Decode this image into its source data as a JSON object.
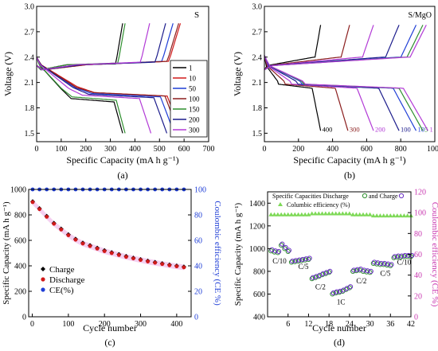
{
  "chart_data": [
    {
      "id": "a",
      "type": "line",
      "caption": "(a)",
      "title": "S",
      "xlabel": "Specific Capacity (mA h g⁻¹)",
      "ylabel": "Voltage (V)",
      "xlim": [
        0,
        700
      ],
      "ylim": [
        1.4,
        3.0
      ],
      "xticks": [
        0,
        100,
        200,
        300,
        400,
        500,
        600,
        700
      ],
      "yticks": [
        1.5,
        1.8,
        2.1,
        2.4,
        2.7,
        3.0
      ],
      "legend_position": "right",
      "legend_title": "",
      "series": [
        {
          "name": "1",
          "color": "#000000",
          "discharge_capacity": 350,
          "charge_capacity": 350,
          "upper_plateau": 2.03,
          "lower_plateau": 1.91,
          "charge_plateau": 2.32
        },
        {
          "name": "10",
          "color": "#d11a1a",
          "discharge_capacity": 590,
          "charge_capacity": 585,
          "upper_plateau": 2.05,
          "lower_plateau": 1.98,
          "charge_plateau": 2.35
        },
        {
          "name": "50",
          "color": "#1f3ed6",
          "discharge_capacity": 560,
          "charge_capacity": 555,
          "upper_plateau": 2.04,
          "lower_plateau": 1.97,
          "charge_plateau": 2.35
        },
        {
          "name": "100",
          "color": "#8b1e1e",
          "discharge_capacity": 580,
          "charge_capacity": 578,
          "upper_plateau": 2.04,
          "lower_plateau": 1.98,
          "charge_plateau": 2.35
        },
        {
          "name": "150",
          "color": "#2f8f2f",
          "discharge_capacity": 360,
          "charge_capacity": 360,
          "upper_plateau": 2.03,
          "lower_plateau": 1.93,
          "charge_plateau": 2.33
        },
        {
          "name": "200",
          "color": "#1c1c8c",
          "discharge_capacity": 530,
          "charge_capacity": 525,
          "upper_plateau": 2.04,
          "lower_plateau": 1.96,
          "charge_plateau": 2.34
        },
        {
          "name": "300",
          "color": "#b23ad6",
          "discharge_capacity": 465,
          "charge_capacity": 460,
          "upper_plateau": 2.03,
          "lower_plateau": 1.95,
          "charge_plateau": 2.34
        }
      ]
    },
    {
      "id": "b",
      "type": "line",
      "caption": "(b)",
      "title": "S/MgO",
      "xlabel": "Specific Capacity (mA h g⁻¹)",
      "ylabel": "Voltage (V)",
      "xlim": [
        0,
        1000
      ],
      "ylim": [
        1.4,
        3.0
      ],
      "xticks": [
        0,
        200,
        400,
        600,
        800,
        1000
      ],
      "yticks": [
        1.5,
        1.8,
        2.1,
        2.4,
        2.7,
        3.0
      ],
      "series": [
        {
          "name": "400",
          "color": "#000000",
          "discharge_capacity": 330,
          "charge_capacity": 330
        },
        {
          "name": "300",
          "color": "#8b1e1e",
          "discharge_capacity": 490,
          "charge_capacity": 500
        },
        {
          "name": "200",
          "color": "#b23ad6",
          "discharge_capacity": 640,
          "charge_capacity": 640
        },
        {
          "name": "100",
          "color": "#1c1c8c",
          "discharge_capacity": 790,
          "charge_capacity": 790
        },
        {
          "name": "10",
          "color": "#1f3ed6",
          "discharge_capacity": 890,
          "charge_capacity": 890
        },
        {
          "name": "5",
          "color": "#2f8f2f",
          "discharge_capacity": 930,
          "charge_capacity": 930
        },
        {
          "name": "1",
          "color": "#b23ad6",
          "discharge_capacity": 960,
          "charge_capacity": 950
        }
      ]
    },
    {
      "id": "c",
      "type": "scatter",
      "caption": "(c)",
      "xlabel": "Cycle number",
      "ylabel": "Specific Capacity (mA h g⁻¹)",
      "y2label": "Coulombic efficiency (CE %)",
      "xlim": [
        -10,
        440
      ],
      "ylim": [
        0,
        1000
      ],
      "y2lim": [
        0,
        100
      ],
      "xticks": [
        0,
        100,
        200,
        300,
        400
      ],
      "yticks": [
        0,
        200,
        400,
        600,
        800,
        1000
      ],
      "y2ticks": [
        0,
        20,
        40,
        60,
        80,
        100
      ],
      "legend_position": "bottom-left",
      "series": [
        {
          "name": "Charge",
          "color": "#000000",
          "marker": "diamond",
          "x": [
            1,
            20,
            40,
            60,
            80,
            100,
            120,
            140,
            160,
            180,
            200,
            220,
            240,
            260,
            280,
            300,
            320,
            340,
            360,
            380,
            400,
            420
          ],
          "y": [
            905,
            850,
            790,
            735,
            690,
            645,
            610,
            580,
            560,
            540,
            520,
            505,
            490,
            475,
            462,
            450,
            438,
            428,
            418,
            408,
            400,
            392
          ]
        },
        {
          "name": "Discharge",
          "color": "#d11a1a",
          "marker": "circle",
          "x": [
            1,
            20,
            40,
            60,
            80,
            100,
            120,
            140,
            160,
            180,
            200,
            220,
            240,
            260,
            280,
            300,
            320,
            340,
            360,
            380,
            400,
            420
          ],
          "y": [
            900,
            845,
            785,
            730,
            685,
            640,
            605,
            575,
            555,
            535,
            515,
            500,
            485,
            470,
            458,
            446,
            434,
            424,
            414,
            404,
            396,
            388
          ]
        },
        {
          "name": "CE(%)",
          "color": "#1f3ed6",
          "marker": "circle",
          "axis": "right",
          "x": [
            1,
            20,
            40,
            60,
            80,
            100,
            120,
            140,
            160,
            180,
            200,
            220,
            240,
            260,
            280,
            300,
            320,
            340,
            360,
            380,
            400,
            420
          ],
          "y": [
            100,
            100,
            100,
            100,
            100,
            100,
            100,
            100,
            100,
            100,
            100,
            100,
            100,
            100,
            100,
            100,
            100,
            100,
            100,
            100,
            100,
            100
          ]
        }
      ]
    },
    {
      "id": "d",
      "type": "scatter",
      "caption": "(d)",
      "xlabel": "Cycle number",
      "ylabel": "Specific Capacity (mA h g⁻¹)",
      "y2label": "Coulombic efficiency (CE %)",
      "xlim": [
        0,
        42
      ],
      "ylim": [
        400,
        1500
      ],
      "y2lim": [
        0,
        120
      ],
      "xticks": [
        6,
        12,
        18,
        24,
        30,
        36,
        42
      ],
      "yticks": [
        400,
        600,
        800,
        1000,
        1200,
        1400
      ],
      "y2ticks": [
        0,
        20,
        40,
        60,
        80,
        100,
        120
      ],
      "legend": {
        "capacities": "Specific Capacities Discharge",
        "charge": "and Charge",
        "ce": "Columbic efficiency (%)"
      },
      "rate_labels": [
        {
          "text": "C/10",
          "x": 3.5,
          "y": 870
        },
        {
          "text": "C/5",
          "x": 10.5,
          "y": 820
        },
        {
          "text": "C/2",
          "x": 15.5,
          "y": 640
        },
        {
          "text": "1C",
          "x": 21.5,
          "y": 510
        },
        {
          "text": "C/2",
          "x": 27.5,
          "y": 695
        },
        {
          "text": "C/5",
          "x": 34.5,
          "y": 760
        },
        {
          "text": "C/10",
          "x": 40,
          "y": 860
        }
      ],
      "series": [
        {
          "name": "Discharge",
          "color": "#2f8f2f",
          "marker": "circle",
          "x": [
            1,
            2,
            3,
            4,
            5,
            6,
            7,
            8,
            9,
            10,
            11,
            12,
            13,
            14,
            15,
            16,
            17,
            18,
            19,
            20,
            21,
            22,
            23,
            24,
            25,
            26,
            27,
            28,
            29,
            30,
            31,
            32,
            33,
            34,
            35,
            36,
            37,
            38,
            39,
            40,
            41,
            42
          ],
          "y": [
            980,
            970,
            965,
            1030,
            1000,
            975,
            880,
            885,
            890,
            895,
            900,
            905,
            735,
            745,
            755,
            770,
            780,
            790,
            600,
            610,
            615,
            625,
            640,
            655,
            800,
            805,
            810,
            800,
            795,
            790,
            870,
            865,
            860,
            860,
            855,
            850,
            920,
            925,
            925,
            930,
            930,
            930
          ]
        },
        {
          "name": "Charge",
          "color": "#6a2fc4",
          "marker": "circle",
          "x": [
            1,
            2,
            3,
            4,
            5,
            6,
            7,
            8,
            9,
            10,
            11,
            12,
            13,
            14,
            15,
            16,
            17,
            18,
            19,
            20,
            21,
            22,
            23,
            24,
            25,
            26,
            27,
            28,
            29,
            30,
            31,
            32,
            33,
            34,
            35,
            36,
            37,
            38,
            39,
            40,
            41,
            42
          ],
          "y": [
            990,
            980,
            975,
            1040,
            1010,
            985,
            890,
            895,
            900,
            905,
            910,
            915,
            745,
            755,
            765,
            780,
            790,
            800,
            610,
            620,
            625,
            635,
            650,
            665,
            810,
            815,
            820,
            810,
            805,
            800,
            880,
            875,
            870,
            870,
            865,
            860,
            930,
            935,
            935,
            940,
            940,
            940
          ]
        },
        {
          "name": "Columbic efficiency (%)",
          "color": "#7ed957",
          "marker": "triangle",
          "axis": "right",
          "x": [
            1,
            2,
            3,
            4,
            5,
            6,
            7,
            8,
            9,
            10,
            11,
            12,
            13,
            14,
            15,
            16,
            17,
            18,
            19,
            20,
            21,
            22,
            23,
            24,
            25,
            26,
            27,
            28,
            29,
            30,
            31,
            32,
            33,
            34,
            35,
            36,
            37,
            38,
            39,
            40,
            41,
            42
          ],
          "y": [
            98,
            98,
            98,
            98,
            98,
            98,
            98,
            98,
            98,
            98,
            98,
            98,
            99,
            99,
            99,
            99,
            99,
            99,
            99,
            99,
            99,
            99,
            99,
            99,
            98,
            98,
            98,
            98,
            98,
            98,
            97,
            97,
            97,
            97,
            97,
            97,
            97,
            97,
            97,
            97,
            97,
            97
          ]
        }
      ]
    }
  ]
}
